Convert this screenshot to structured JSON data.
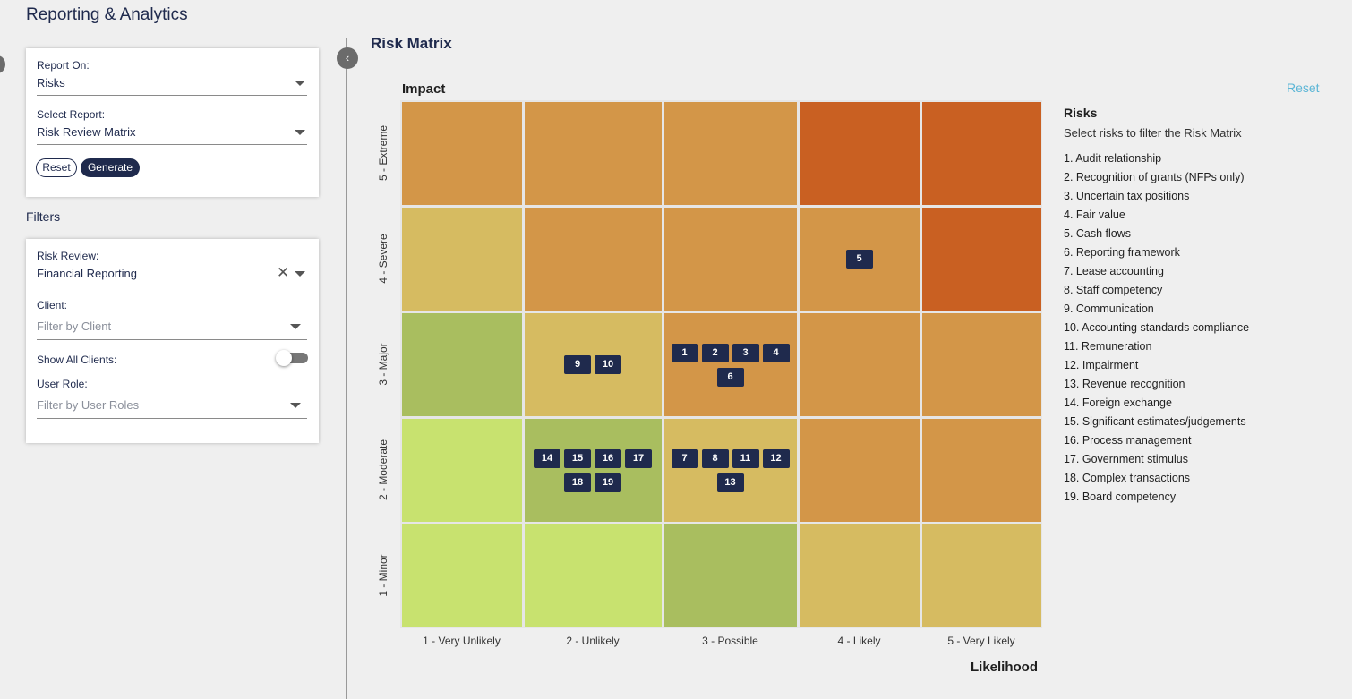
{
  "app": {
    "title": "Reporting & Analytics"
  },
  "report_card": {
    "report_on_label": "Report On:",
    "report_on_value": "Risks",
    "select_report_label": "Select Report:",
    "select_report_value": "Risk Review Matrix",
    "reset_label": "Reset",
    "generate_label": "Generate"
  },
  "filters": {
    "heading": "Filters",
    "risk_review_label": "Risk Review:",
    "risk_review_value": "Financial Reporting",
    "client_label": "Client:",
    "client_placeholder": "Filter by Client",
    "show_all_clients_label": "Show All Clients:",
    "show_all_clients_on": false,
    "user_role_label": "User Role:",
    "user_role_placeholder": "Filter by User Roles"
  },
  "panel": {
    "title": "Risk Matrix",
    "reset_link": "Reset",
    "y_axis_title": "Impact",
    "x_axis_title": "Likelihood"
  },
  "matrix": {
    "impact_levels": [
      "5 - Extreme",
      "4 - Severe",
      "3 - Major",
      "2 - Moderate",
      "1 - Minor"
    ],
    "likelihood_levels": [
      "1 - Very Unlikely",
      "2 - Unlikely",
      "3 - Possible",
      "4 - Likely",
      "5 - Very Likely"
    ],
    "colors": {
      "light_green": "#c8e26f",
      "green": "#a9be5f",
      "yellow": "#d6bb61",
      "orange": "#d39648",
      "red": "#c96022"
    },
    "cell_colors": [
      [
        "orange",
        "orange",
        "orange",
        "red",
        "red"
      ],
      [
        "yellow",
        "orange",
        "orange",
        "orange",
        "red"
      ],
      [
        "green",
        "yellow",
        "orange",
        "orange",
        "orange"
      ],
      [
        "light_green",
        "green",
        "yellow",
        "orange",
        "orange"
      ],
      [
        "light_green",
        "light_green",
        "green",
        "yellow",
        "yellow"
      ]
    ],
    "placements": [
      {
        "impact": 4,
        "likelihood": 4,
        "risks": [
          "5"
        ]
      },
      {
        "impact": 3,
        "likelihood": 2,
        "risks": [
          "9",
          "10"
        ]
      },
      {
        "impact": 3,
        "likelihood": 3,
        "risks": [
          "1",
          "2",
          "3",
          "4",
          "6"
        ]
      },
      {
        "impact": 2,
        "likelihood": 2,
        "risks": [
          "14",
          "15",
          "16",
          "17",
          "18",
          "19"
        ]
      },
      {
        "impact": 2,
        "likelihood": 3,
        "risks": [
          "7",
          "8",
          "11",
          "12",
          "13"
        ]
      }
    ]
  },
  "risks_panel": {
    "title": "Risks",
    "subtitle": "Select risks to filter the Risk Matrix",
    "items": [
      "1. Audit relationship",
      "2. Recognition of grants (NFPs only)",
      "3. Uncertain tax positions",
      "4. Fair value",
      "5. Cash flows",
      "6. Reporting framework",
      "7. Lease accounting",
      "8. Staff competency",
      "9. Communication",
      "10. Accounting standards compliance",
      "11. Remuneration",
      "12. Impairment",
      "13. Revenue recognition",
      "14. Foreign exchange",
      "15. Significant estimates/judgements",
      "16. Process management",
      "17. Government stimulus",
      "18. Complex transactions",
      "19. Board competency"
    ]
  }
}
